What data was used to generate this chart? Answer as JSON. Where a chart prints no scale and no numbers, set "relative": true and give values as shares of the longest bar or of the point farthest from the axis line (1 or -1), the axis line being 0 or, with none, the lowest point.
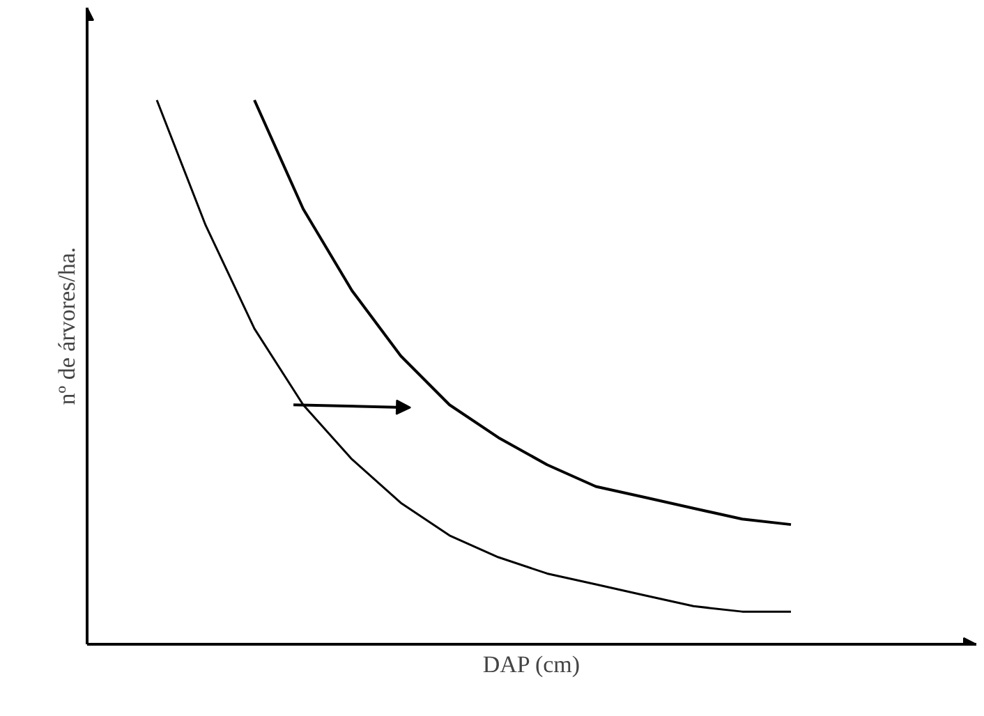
{
  "chart_data": {
    "type": "line",
    "relative": true,
    "xlabel": "DAP (cm)",
    "ylabel": "nº de árvores/ha.",
    "marker": "none",
    "line_style": "solid",
    "categories": [
      null,
      null,
      null,
      null,
      null,
      null,
      null,
      null,
      null,
      null,
      null,
      null,
      null,
      null
    ],
    "series": [
      {
        "color": "#000000",
        "values": [
          1.0,
          0.77,
          0.58,
          0.44,
          0.34,
          0.26,
          0.2,
          0.16,
          0.13,
          0.11,
          0.09,
          0.07,
          0.06,
          0.06
        ]
      },
      {
        "color": "#000000",
        "values": [
          null,
          null,
          1.0,
          0.8,
          0.65,
          0.53,
          0.44,
          0.38,
          0.33,
          0.29,
          0.27,
          0.25,
          0.23,
          0.22
        ]
      }
    ]
  }
}
